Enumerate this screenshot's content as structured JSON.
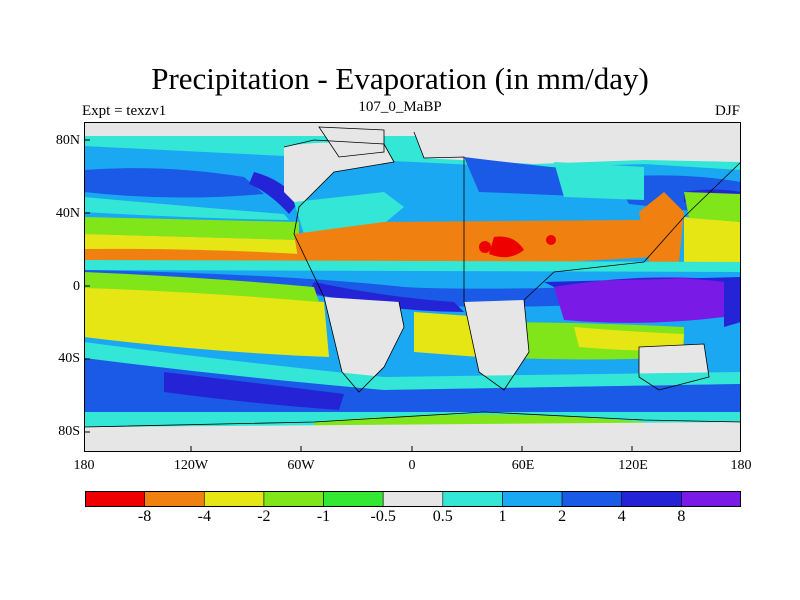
{
  "title": "Precipitation - Evaporation (in mm/day)",
  "experiment_label": "Expt = texzv1",
  "period_label": "107_0_MaBP",
  "season_label": "DJF",
  "latitude_ticks": [
    "80N",
    "40N",
    "0",
    "40S",
    "80S"
  ],
  "longitude_ticks": [
    "180",
    "120W",
    "60W",
    "0",
    "60E",
    "120E",
    "180"
  ],
  "colorbar": {
    "labels": [
      "-8",
      "-4",
      "-2",
      "-1",
      "-0.5",
      "0.5",
      "1",
      "2",
      "4",
      "8"
    ],
    "colors": [
      "#ee0000",
      "#f08010",
      "#e6e614",
      "#80e619",
      "#33e833",
      "#e6e6e6",
      "#33e6d6",
      "#1aa8f2",
      "#1a5ae6",
      "#2424d6",
      "#7a1ae6"
    ]
  },
  "colors": {
    "land_gray": "#e6e6e6",
    "ocean_default": "#1aa8f2"
  }
}
